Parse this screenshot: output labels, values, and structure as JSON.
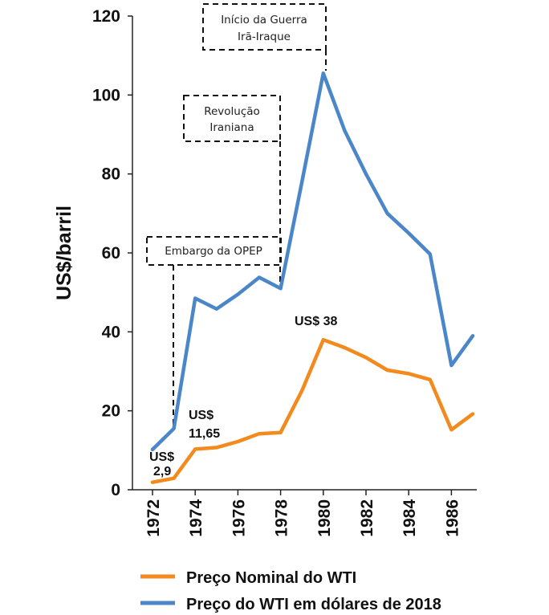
{
  "chart_data": {
    "type": "line",
    "ylabel": "US$/barril",
    "xlabel": "",
    "ylim": [
      0,
      120
    ],
    "yticks": [
      0,
      20,
      40,
      60,
      80,
      100,
      120
    ],
    "xlim": [
      1971.5,
      1987
    ],
    "xticks": [
      1972,
      1974,
      1976,
      1978,
      1980,
      1982,
      1984,
      1986
    ],
    "grid": false,
    "legend": "bottom",
    "series": [
      {
        "name": "Preço Nominal do WTI",
        "color": "#F28A1E",
        "x": [
          1972,
          1973,
          1974,
          1975,
          1976,
          1977,
          1978,
          1979,
          1980,
          1981,
          1982,
          1983,
          1984,
          1985,
          1986,
          1987
        ],
        "y": [
          1.9,
          2.9,
          10.3,
          10.7,
          12.2,
          14.2,
          14.5,
          25.1,
          38,
          36,
          33.5,
          30.3,
          29.4,
          27.9,
          15.2,
          19.2
        ]
      },
      {
        "name": "Preço do WTI em dólares de 2018",
        "color": "#4A86C8",
        "x": [
          1972,
          1973,
          1974,
          1975,
          1976,
          1977,
          1978,
          1979,
          1980,
          1981,
          1982,
          1983,
          1984,
          1985,
          1986,
          1987
        ],
        "y": [
          10.2,
          15.5,
          48.5,
          45.8,
          49.5,
          53.8,
          51,
          78,
          105.5,
          91,
          80,
          70,
          65,
          59.7,
          31.5,
          39
        ]
      }
    ],
    "annotations": [
      {
        "id": "opep",
        "lines": [
          "Embargo da OPEP"
        ]
      },
      {
        "id": "revolucao",
        "lines": [
          "Revolução",
          "Iraniana"
        ]
      },
      {
        "id": "guerra",
        "lines": [
          "Início da Guerra",
          "Irã-Iraque"
        ]
      }
    ],
    "data_labels": [
      {
        "id": "dl1972",
        "lines": [
          "US$",
          "2,9"
        ]
      },
      {
        "id": "dl1974",
        "lines": [
          "US$",
          "11,65"
        ]
      },
      {
        "id": "dl1980",
        "lines": [
          "US$ 38"
        ]
      }
    ]
  }
}
